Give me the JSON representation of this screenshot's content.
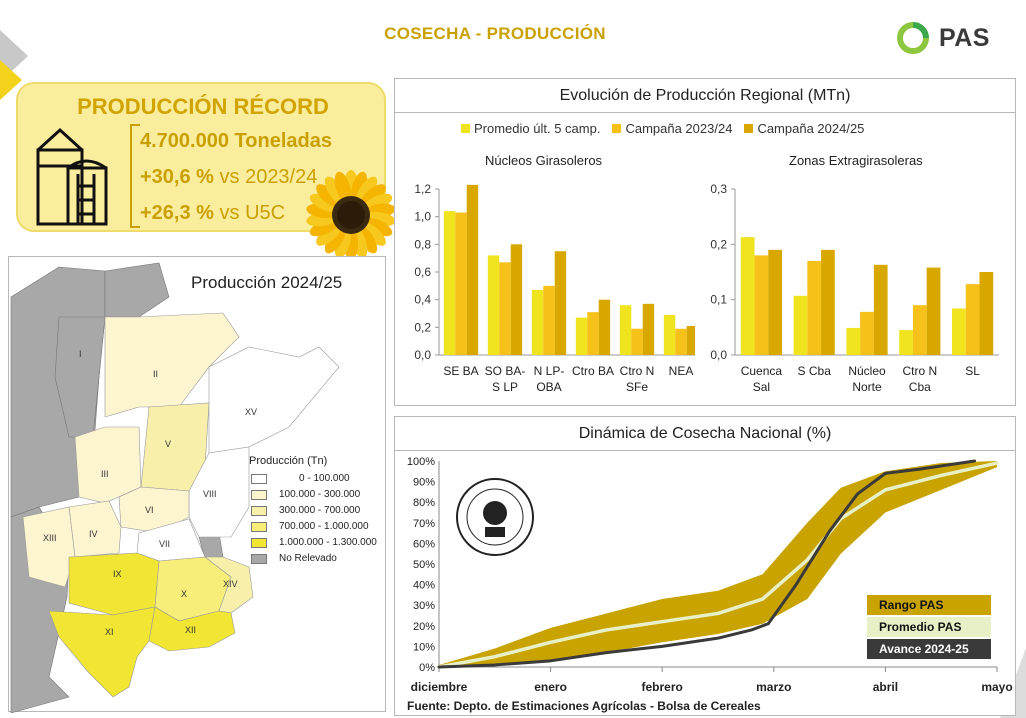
{
  "page": {
    "title": "COSECHA - PRODUCCIÓN",
    "logo_text": "PAS"
  },
  "record": {
    "title": "PRODUCCIÓN RÉCORD",
    "tonnage": "4.700.000 Toneladas",
    "vs_prev_value": "+30,6 %",
    "vs_prev_label": " vs 2023/24",
    "vs_avg_value": "+26,3 %",
    "vs_avg_label": " vs U5C"
  },
  "map": {
    "title": "Producción 2024/25",
    "legend_title": "Producción (Tn)",
    "legend": [
      {
        "label": "0 - 100.000",
        "color": "#ffffff"
      },
      {
        "label": "100.000 - 300.000",
        "color": "#fcf5cf"
      },
      {
        "label": "300.000 - 700.000",
        "color": "#f8f0aa"
      },
      {
        "label": "700.000 - 1.000.000",
        "color": "#f7ee7a"
      },
      {
        "label": "1.000.000 - 1.300.000",
        "color": "#f2e634"
      },
      {
        "label": "No Relevado",
        "color": "#a8a8a8"
      }
    ],
    "region_labels": [
      "I",
      "II",
      "III",
      "IV",
      "V",
      "VI",
      "VII",
      "VIII",
      "IX",
      "X",
      "XI",
      "XII",
      "XIII",
      "XIV",
      "XV"
    ]
  },
  "production_chart": {
    "header": "Evolución de Producción Regional (MTn)",
    "legend": [
      {
        "label": "Promedio últ. 5 camp.",
        "color": "#f0e41e"
      },
      {
        "label": "Campaña 2023/24",
        "color": "#f6c21a"
      },
      {
        "label": "Campaña 2024/25",
        "color": "#d8a800"
      }
    ]
  },
  "chart_data": [
    {
      "type": "bar",
      "title": "Núcleos Girasoleros",
      "categories": [
        "SE BA",
        "SO BA-\nS LP",
        "N LP-\nOBA",
        "Ctro BA",
        "Ctro N\nSFe",
        "NEA"
      ],
      "series": [
        {
          "name": "Promedio últ. 5 camp.",
          "values": [
            1.04,
            0.72,
            0.47,
            0.27,
            0.36,
            0.29
          ]
        },
        {
          "name": "Campaña 2023/24",
          "values": [
            1.03,
            0.67,
            0.5,
            0.31,
            0.19,
            0.19
          ]
        },
        {
          "name": "Campaña 2024/25",
          "values": [
            1.23,
            0.8,
            0.75,
            0.4,
            0.37,
            0.21
          ]
        }
      ],
      "ylim": [
        0,
        1.2
      ],
      "yticks": [
        "0,0",
        "0,2",
        "0,4",
        "0,6",
        "0,8",
        "1,0",
        "1,2"
      ],
      "ytick_values": [
        0,
        0.2,
        0.4,
        0.6,
        0.8,
        1.0,
        1.2
      ],
      "grid": false
    },
    {
      "type": "bar",
      "title": "Zonas Extragirasoleras",
      "categories": [
        "Cuenca\nSal",
        "S Cba",
        "Núcleo\nNorte",
        "Ctro N\nCba",
        "SL"
      ],
      "series": [
        {
          "name": "Promedio últ. 5 camp.",
          "values": [
            0.213,
            0.107,
            0.049,
            0.045,
            0.084
          ]
        },
        {
          "name": "Campaña 2023/24",
          "values": [
            0.18,
            0.17,
            0.078,
            0.09,
            0.128
          ]
        },
        {
          "name": "Campaña 2024/25",
          "values": [
            0.19,
            0.19,
            0.163,
            0.158,
            0.15
          ]
        }
      ],
      "ylim": [
        0,
        0.3
      ],
      "yticks": [
        "0,0",
        "0,1",
        "0,2",
        "0,3"
      ],
      "ytick_values": [
        0,
        0.1,
        0.2,
        0.3
      ],
      "grid": false
    },
    {
      "type": "area",
      "title": "Dinámica de Cosecha Nacional (%)",
      "x_tick_labels": [
        "diciembre",
        "enero",
        "febrero",
        "marzo",
        "abril",
        "mayo"
      ],
      "x_tick_positions": [
        0,
        1,
        2,
        3,
        4,
        5
      ],
      "ylim": [
        0,
        100
      ],
      "yticks": [
        "0%",
        "10%",
        "20%",
        "30%",
        "40%",
        "50%",
        "60%",
        "70%",
        "80%",
        "90%",
        "100%"
      ],
      "ytick_values": [
        0,
        10,
        20,
        30,
        40,
        50,
        60,
        70,
        80,
        90,
        100
      ],
      "series": [
        {
          "name": "Rango PAS",
          "color": "#c9a300",
          "x": [
            0,
            0.5,
            1.0,
            1.5,
            2.0,
            2.5,
            2.9,
            3.3,
            3.6,
            4.0,
            4.5,
            5.0
          ],
          "upper": [
            1,
            9,
            19,
            26,
            33,
            37,
            45,
            70,
            87,
            95,
            99,
            100
          ],
          "lower": [
            0,
            1,
            3,
            7,
            12,
            16,
            21,
            33,
            55,
            75,
            86,
            97
          ]
        },
        {
          "name": "Promedio PAS",
          "color": "#e8f0c8",
          "x": [
            0,
            0.5,
            1.0,
            1.5,
            2.0,
            2.5,
            2.9,
            3.3,
            3.6,
            4.0,
            4.5,
            5.0
          ],
          "values": [
            0,
            5,
            12,
            18,
            22,
            26,
            33,
            52,
            72,
            86,
            93,
            99
          ]
        },
        {
          "name": "Avance 2024-25",
          "color": "#3a3a3a",
          "x": [
            0,
            0.5,
            1.0,
            1.5,
            2.0,
            2.5,
            2.8,
            2.95,
            3.2,
            3.5,
            3.75,
            4.0,
            4.3,
            4.8
          ],
          "values": [
            0,
            1,
            3,
            7,
            10,
            14,
            18,
            21,
            40,
            66,
            84,
            94,
            96,
            100
          ]
        }
      ],
      "grid": false,
      "legend_placement": "bottom-right"
    }
  ],
  "harvest_chart": {
    "header": "Dinámica de Cosecha Nacional (%)",
    "source": "Fuente: Depto. de Estimaciones Agrícolas - Bolsa de Cereales",
    "seal_text": "Bolsa de Cereales"
  }
}
